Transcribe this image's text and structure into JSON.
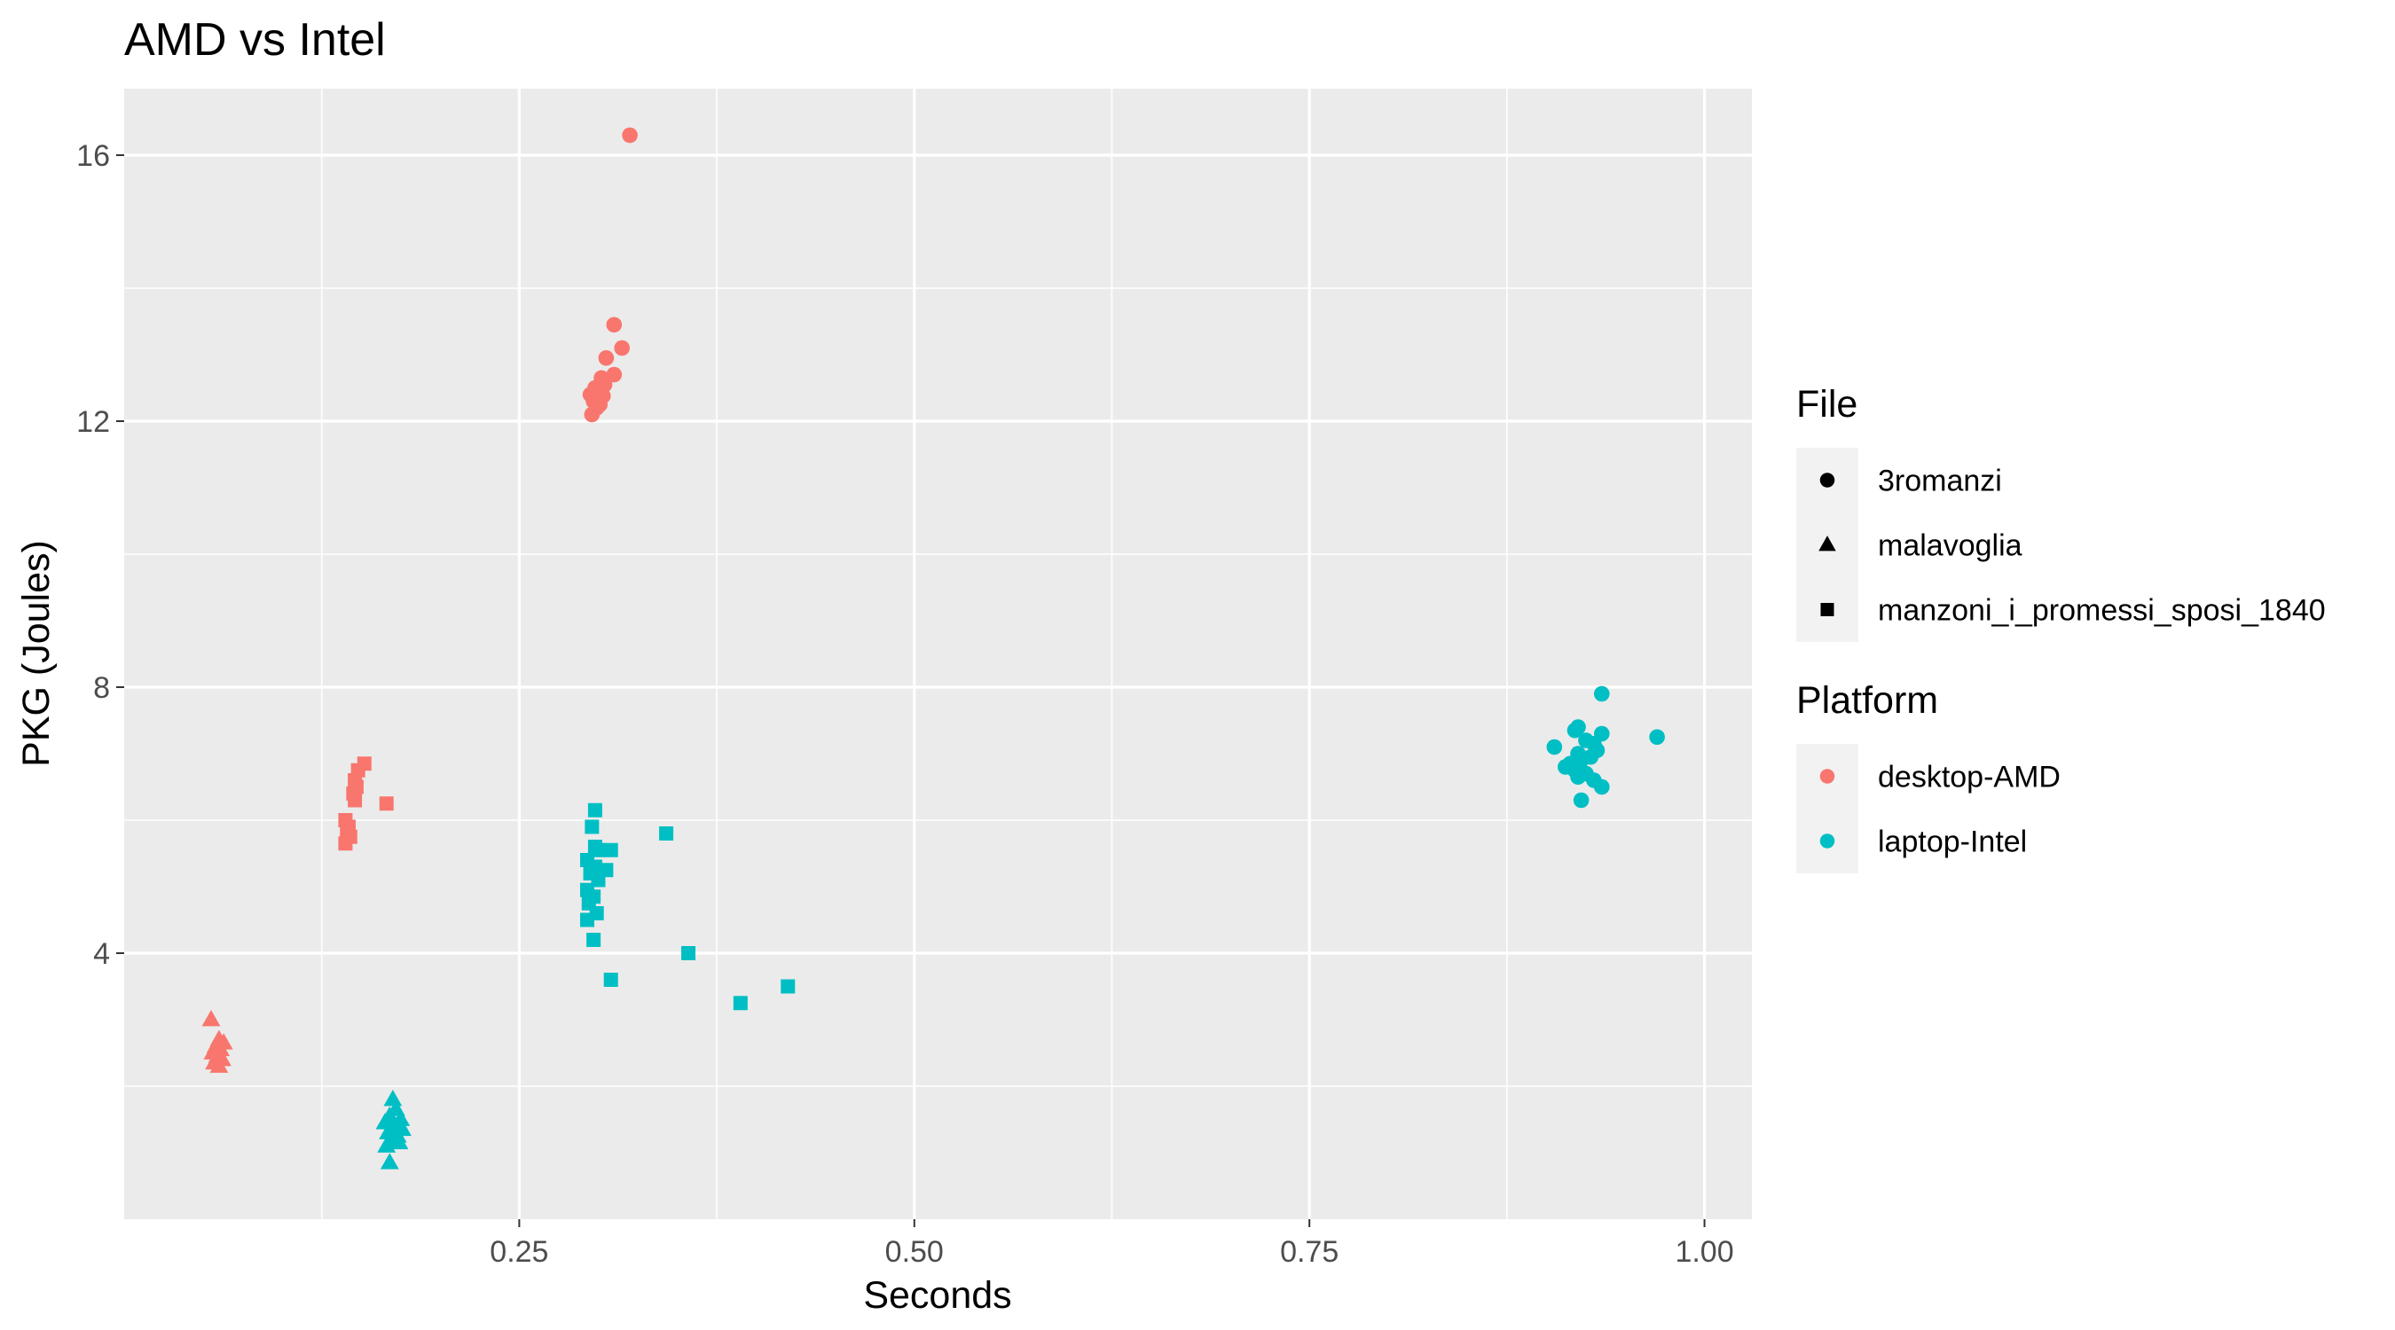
{
  "chart_data": {
    "type": "scatter",
    "title": "AMD vs Intel",
    "xlabel": "Seconds",
    "ylabel": "PKG (Joules)",
    "xlim": [
      0.0,
      1.03
    ],
    "ylim": [
      0.0,
      17.0
    ],
    "x_ticks": [
      0.25,
      0.5,
      0.75,
      1.0
    ],
    "x_tick_labels": [
      "0.25",
      "0.50",
      "0.75",
      "1.00"
    ],
    "y_ticks": [
      4,
      8,
      12,
      16
    ],
    "y_tick_labels": [
      "4",
      "8",
      "12",
      "16"
    ],
    "grid": true,
    "legend_position": "right",
    "legends": [
      {
        "title": "File",
        "aesthetic": "shape",
        "entries": [
          {
            "label": "3romanzi",
            "shape": "circle"
          },
          {
            "label": "malavoglia",
            "shape": "triangle"
          },
          {
            "label": "manzoni_i_promessi_sposi_1840",
            "shape": "square"
          }
        ]
      },
      {
        "title": "Platform",
        "aesthetic": "color",
        "entries": [
          {
            "label": "desktop-AMD",
            "color": "#F8766D"
          },
          {
            "label": "laptop-Intel",
            "color": "#00BFC4"
          }
        ]
      }
    ],
    "series": [
      {
        "file": "3romanzi",
        "platform": "desktop-AMD",
        "points": [
          [
            0.32,
            16.3
          ],
          [
            0.31,
            13.45
          ],
          [
            0.315,
            13.1
          ],
          [
            0.305,
            12.95
          ],
          [
            0.31,
            12.7
          ],
          [
            0.302,
            12.65
          ],
          [
            0.298,
            12.5
          ],
          [
            0.3,
            12.45
          ],
          [
            0.295,
            12.4
          ],
          [
            0.303,
            12.38
          ],
          [
            0.297,
            12.3
          ],
          [
            0.301,
            12.25
          ],
          [
            0.299,
            12.2
          ],
          [
            0.296,
            12.1
          ],
          [
            0.304,
            12.55
          ],
          [
            0.3,
            12.35
          ]
        ]
      },
      {
        "file": "3romanzi",
        "platform": "laptop-Intel",
        "points": [
          [
            0.935,
            7.9
          ],
          [
            0.905,
            7.1
          ],
          [
            0.92,
            7.4
          ],
          [
            0.918,
            7.35
          ],
          [
            0.925,
            7.2
          ],
          [
            0.93,
            7.15
          ],
          [
            0.935,
            7.3
          ],
          [
            0.97,
            7.25
          ],
          [
            0.92,
            7.0
          ],
          [
            0.928,
            6.95
          ],
          [
            0.915,
            6.85
          ],
          [
            0.922,
            6.9
          ],
          [
            0.912,
            6.8
          ],
          [
            0.918,
            6.75
          ],
          [
            0.925,
            6.7
          ],
          [
            0.92,
            6.65
          ],
          [
            0.93,
            6.6
          ],
          [
            0.935,
            6.5
          ],
          [
            0.922,
            6.3
          ],
          [
            0.932,
            7.05
          ]
        ]
      },
      {
        "file": "malavoglia",
        "platform": "desktop-AMD",
        "points": [
          [
            0.055,
            3.0
          ],
          [
            0.06,
            2.7
          ],
          [
            0.063,
            2.65
          ],
          [
            0.058,
            2.6
          ],
          [
            0.061,
            2.55
          ],
          [
            0.056,
            2.5
          ],
          [
            0.059,
            2.45
          ],
          [
            0.062,
            2.4
          ],
          [
            0.057,
            2.35
          ],
          [
            0.06,
            2.3
          ]
        ]
      },
      {
        "file": "malavoglia",
        "platform": "laptop-Intel",
        "points": [
          [
            0.17,
            1.8
          ],
          [
            0.172,
            1.65
          ],
          [
            0.168,
            1.55
          ],
          [
            0.175,
            1.5
          ],
          [
            0.165,
            1.45
          ],
          [
            0.171,
            1.4
          ],
          [
            0.176,
            1.35
          ],
          [
            0.167,
            1.3
          ],
          [
            0.173,
            1.25
          ],
          [
            0.169,
            1.2
          ],
          [
            0.174,
            1.15
          ],
          [
            0.166,
            1.1
          ],
          [
            0.168,
            0.85
          ]
        ]
      },
      {
        "file": "manzoni_i_promessi_sposi_1840",
        "platform": "desktop-AMD",
        "points": [
          [
            0.152,
            6.85
          ],
          [
            0.148,
            6.75
          ],
          [
            0.146,
            6.6
          ],
          [
            0.147,
            6.5
          ],
          [
            0.145,
            6.4
          ],
          [
            0.146,
            6.3
          ],
          [
            0.166,
            6.25
          ],
          [
            0.14,
            6.0
          ],
          [
            0.142,
            5.9
          ],
          [
            0.141,
            5.8
          ],
          [
            0.143,
            5.75
          ],
          [
            0.14,
            5.65
          ]
        ]
      },
      {
        "file": "manzoni_i_promessi_sposi_1840",
        "platform": "laptop-Intel",
        "points": [
          [
            0.298,
            6.15
          ],
          [
            0.296,
            5.9
          ],
          [
            0.298,
            5.6
          ],
          [
            0.3,
            5.55
          ],
          [
            0.308,
            5.55
          ],
          [
            0.343,
            5.8
          ],
          [
            0.293,
            5.4
          ],
          [
            0.298,
            5.3
          ],
          [
            0.305,
            5.25
          ],
          [
            0.295,
            5.2
          ],
          [
            0.3,
            5.1
          ],
          [
            0.293,
            4.95
          ],
          [
            0.297,
            4.85
          ],
          [
            0.294,
            4.75
          ],
          [
            0.299,
            4.6
          ],
          [
            0.293,
            4.5
          ],
          [
            0.297,
            4.2
          ],
          [
            0.357,
            4.0
          ],
          [
            0.308,
            3.6
          ],
          [
            0.42,
            3.5
          ],
          [
            0.39,
            3.25
          ]
        ]
      }
    ]
  }
}
